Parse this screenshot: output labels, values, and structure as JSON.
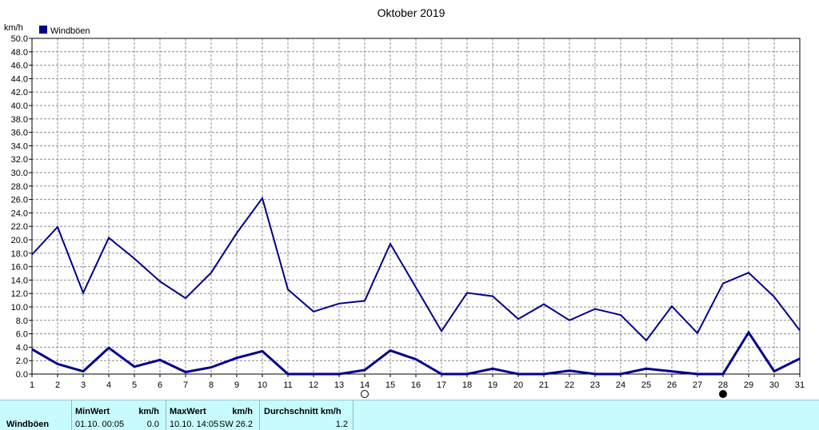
{
  "chart_data": {
    "type": "line",
    "title": "Oktober 2019",
    "ylabel": "km/h",
    "ylim": [
      0,
      50
    ],
    "yticks": [
      "0.0",
      "2.0",
      "4.0",
      "6.0",
      "8.0",
      "10.0",
      "12.0",
      "14.0",
      "16.0",
      "18.0",
      "20.0",
      "22.0",
      "24.0",
      "26.0",
      "28.0",
      "30.0",
      "32.0",
      "34.0",
      "36.0",
      "38.0",
      "40.0",
      "42.0",
      "44.0",
      "46.0",
      "48.0",
      "50.0"
    ],
    "categories": [
      "1",
      "2",
      "3",
      "4",
      "5",
      "6",
      "7",
      "8",
      "9",
      "10",
      "11",
      "12",
      "13",
      "14",
      "15",
      "16",
      "17",
      "18",
      "19",
      "20",
      "21",
      "22",
      "23",
      "24",
      "25",
      "26",
      "27",
      "28",
      "29",
      "30",
      "31"
    ],
    "grid": true,
    "legend": {
      "position": "top-left",
      "entries": [
        {
          "label": "Windböen",
          "color": "#00008b"
        }
      ]
    },
    "series": [
      {
        "name": "Windböen",
        "role": "max",
        "color": "#00008b",
        "values": [
          17.8,
          21.9,
          12.1,
          20.3,
          17.2,
          13.8,
          11.3,
          15.1,
          21.0,
          26.2,
          12.6,
          9.3,
          10.5,
          10.9,
          19.4,
          12.9,
          6.4,
          12.1,
          11.6,
          8.2,
          10.4,
          8.0,
          9.7,
          8.8,
          5.0,
          10.1,
          6.1,
          13.5,
          15.1,
          11.5,
          6.5
        ]
      },
      {
        "name": "Windböen",
        "role": "avg",
        "color": "#00008b",
        "values": [
          3.7,
          1.5,
          0.4,
          3.9,
          1.1,
          2.1,
          0.3,
          1.0,
          2.4,
          3.4,
          0.0,
          0.0,
          0.0,
          0.6,
          3.5,
          2.2,
          0.0,
          0.0,
          0.8,
          0.0,
          0.0,
          0.5,
          0.0,
          0.0,
          0.8,
          0.4,
          0.0,
          0.0,
          6.2,
          0.4,
          2.3
        ]
      }
    ],
    "moon_phases": [
      {
        "day": 14,
        "phase": "full-moon-icon"
      },
      {
        "day": 28,
        "phase": "new-moon-icon"
      }
    ]
  },
  "stats": {
    "row_label": "Windböen",
    "min": {
      "header": "MinWert",
      "unit": "km/h",
      "time": "01.10.  00:05",
      "value": "0.0"
    },
    "max": {
      "header": "MaxWert",
      "unit": "km/h",
      "time": "10.10.  14:05",
      "dir": "SW",
      "value": "26.2"
    },
    "avg": {
      "header": "Durchschnitt km/h",
      "value": "1.2"
    }
  }
}
